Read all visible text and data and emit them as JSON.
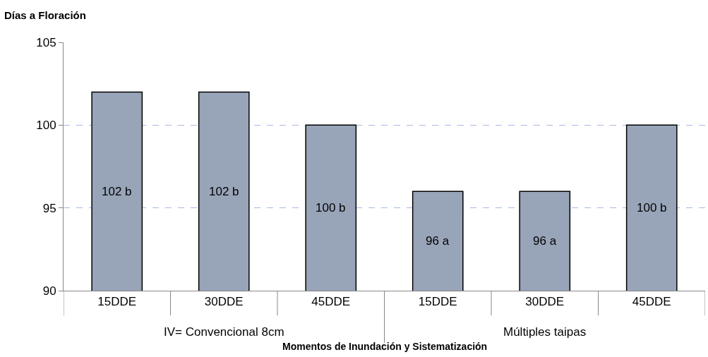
{
  "chart_data": {
    "type": "bar",
    "ylabel": "Días a Floración",
    "xlabel": "Momentos de Inundación y Sistematización",
    "categories": [
      "15DDE",
      "30DDE",
      "45DDE",
      "15DDE",
      "30DDE",
      "45DDE"
    ],
    "values": [
      102,
      102,
      100,
      96,
      96,
      100
    ],
    "value_labels": [
      "102 b",
      "102 b",
      "100 b",
      "96 a",
      "96 a",
      "100 b"
    ],
    "color": "#98a4b8",
    "annotations": [
      "IV= Convencional 8cm",
      "Múltiples taipas"
    ],
    "ylim": [
      90,
      105
    ],
    "yticks": [
      90,
      95,
      100,
      105
    ],
    "grid": "y"
  }
}
